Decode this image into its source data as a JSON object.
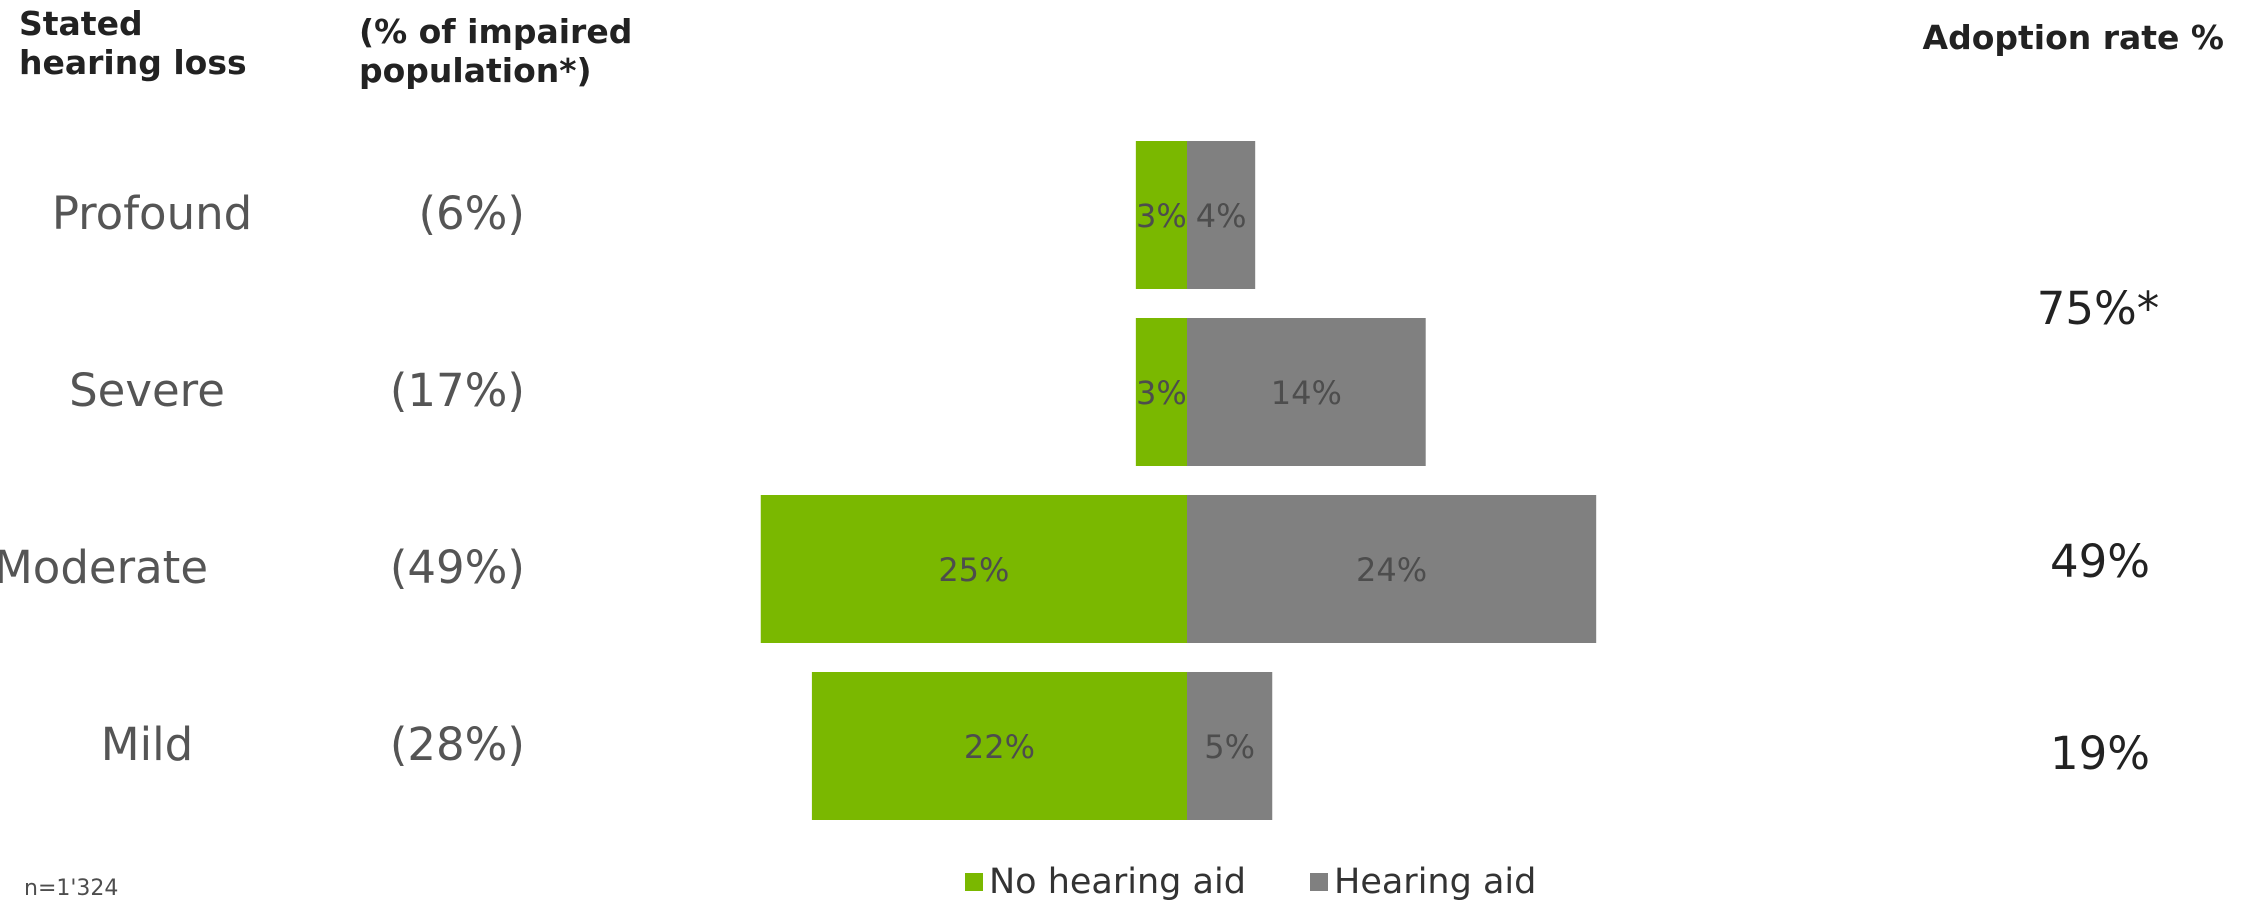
{
  "headers": {
    "left": "Stated hearing loss",
    "middle": "(% of impaired population*)",
    "right": "Adoption rate %"
  },
  "rows": [
    {
      "label": "Profound",
      "share": "(6%)"
    },
    {
      "label": "Severe",
      "share": "(17%)"
    },
    {
      "label": "Moderate",
      "share": "(49%)"
    },
    {
      "label": "Mild",
      "share": "(28%)"
    }
  ],
  "adoption": {
    "profound_severe": "75%*",
    "moderate": "49%",
    "mild": "19%"
  },
  "footnote": "n=1'324",
  "colors": {
    "no_aid": "#7ab800",
    "aid": "#808080"
  },
  "chart_data": {
    "type": "bar",
    "orientation": "horizontal diverging",
    "categories": [
      "Profound",
      "Severe",
      "Moderate",
      "Mild"
    ],
    "series": [
      {
        "name": "No hearing aid",
        "values": [
          3,
          3,
          25,
          22
        ],
        "labels": [
          "3%",
          "3%",
          "25%",
          "22%"
        ]
      },
      {
        "name": "Hearing aid",
        "values": [
          4,
          14,
          24,
          5
        ],
        "labels": [
          "4%",
          "14%",
          "24%",
          "5%"
        ]
      }
    ],
    "legend_position": "bottom",
    "grid": false
  }
}
